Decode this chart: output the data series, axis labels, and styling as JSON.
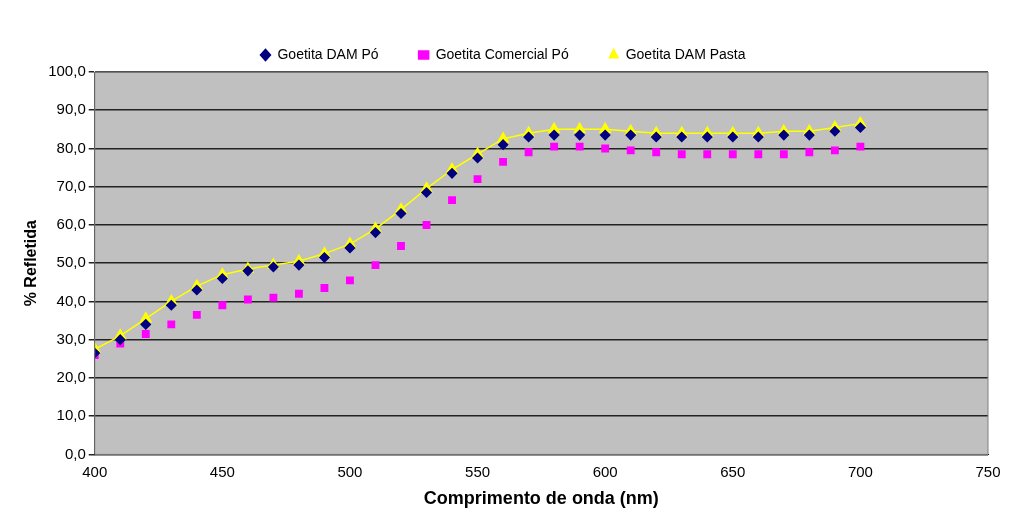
{
  "chart_data": {
    "type": "scatter",
    "xlabel": "Comprimento de onda (nm)",
    "ylabel": "% Refletida",
    "legend": "top",
    "grid": "y",
    "x": [
      400,
      410,
      420,
      430,
      440,
      450,
      460,
      470,
      480,
      490,
      500,
      510,
      520,
      530,
      540,
      550,
      560,
      570,
      580,
      590,
      600,
      610,
      620,
      630,
      640,
      650,
      660,
      670,
      680,
      690,
      700
    ],
    "xlim": [
      400,
      750
    ],
    "xticks": [
      400,
      450,
      500,
      550,
      600,
      650,
      700,
      750
    ],
    "ylim": [
      0,
      100
    ],
    "yticks": [
      {
        "value": 0,
        "label": "0,0"
      },
      {
        "value": 10,
        "label": "10,0"
      },
      {
        "value": 20,
        "label": "20,0"
      },
      {
        "value": 30,
        "label": "30,0"
      },
      {
        "value": 40,
        "label": "40,0"
      },
      {
        "value": 50,
        "label": "50,0"
      },
      {
        "value": 60,
        "label": "60,0"
      },
      {
        "value": 70,
        "label": "70,0"
      },
      {
        "value": 80,
        "label": "80,0"
      },
      {
        "value": 90,
        "label": "90,0"
      },
      {
        "value": 100,
        "label": "100,0"
      }
    ],
    "series": [
      {
        "name": "Goetita DAM Pó",
        "type": "scatter",
        "marker": "diamond",
        "color": "#000080",
        "values": [
          26.5,
          30,
          34,
          39,
          43,
          46,
          48,
          49,
          49.5,
          51.5,
          54,
          58,
          63,
          68.5,
          73.5,
          77.5,
          81,
          83,
          83.5,
          83.5,
          83.5,
          83.5,
          83,
          83,
          83,
          83,
          83,
          83.5,
          83.5,
          84.5,
          85.5
        ]
      },
      {
        "name": "Goetita Comercial Pó",
        "type": "scatter",
        "marker": "square",
        "color": "#ff00ff",
        "values": [
          26,
          29,
          31.5,
          34,
          36.5,
          39,
          40.5,
          41,
          42,
          43.5,
          45.5,
          49.5,
          54.5,
          60,
          66.5,
          72,
          76.5,
          79,
          80.5,
          80.5,
          80,
          79.5,
          79,
          78.5,
          78.5,
          78.5,
          78.5,
          78.5,
          79,
          79.5,
          80.5
        ]
      },
      {
        "name": "Goetita DAM Pasta",
        "type": "line",
        "marker": "triangle",
        "line_style": "solid",
        "color": "#ffff00",
        "values": [
          27.5,
          31,
          35.5,
          40,
          44,
          47,
          48.5,
          49.5,
          50.5,
          52.5,
          55,
          59,
          64,
          69.5,
          74.5,
          78.5,
          82.5,
          84,
          85,
          85,
          85,
          84.5,
          84,
          84,
          84,
          84,
          84,
          84.5,
          84.5,
          85.5,
          86.5
        ]
      }
    ]
  }
}
